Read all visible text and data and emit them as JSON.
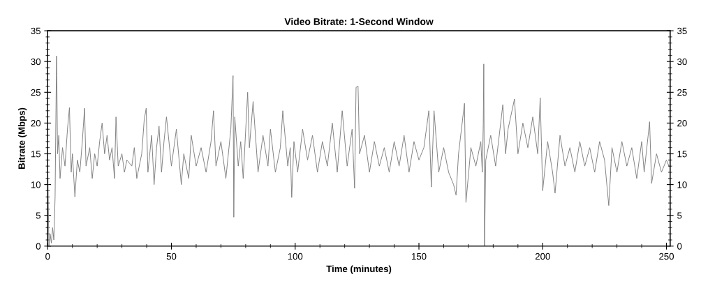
{
  "chart_data": {
    "type": "line",
    "title": "Video Bitrate: 1-Second Window",
    "xlabel": "Time (minutes)",
    "ylabel": "Bitrate (Mbps)",
    "xlim": [
      0,
      251.5
    ],
    "xticks": [
      0,
      50,
      100,
      150,
      200,
      250
    ],
    "ylim": [
      0,
      35
    ],
    "yticks": [
      0,
      5,
      10,
      15,
      20,
      25,
      30,
      35
    ],
    "y2lim": [
      0,
      35
    ],
    "y2ticks": [
      0,
      5,
      10,
      15,
      20,
      25,
      30,
      35
    ],
    "grid": false,
    "legend": false,
    "marker": "none",
    "line_style": "solid",
    "series": [
      {
        "color": "#808080",
        "x": [
          0,
          0.5,
          1,
          1.5,
          2,
          2.5,
          3,
          3.5,
          3.6,
          4,
          4.5,
          5,
          6,
          7,
          8,
          8.8,
          9.5,
          10,
          11,
          12,
          13,
          14,
          14.9,
          15.5,
          17,
          18,
          19,
          20,
          21,
          22,
          23,
          24,
          25,
          26,
          27,
          27.6,
          28.5,
          30,
          31,
          32,
          34,
          35,
          36,
          38,
          39,
          39.8,
          40.5,
          42,
          43,
          44,
          45,
          46,
          47,
          48,
          50,
          51,
          52,
          54,
          55,
          57,
          58,
          60,
          62,
          64,
          66,
          67,
          68,
          70,
          72,
          74,
          74.9,
          75.2,
          75.6,
          77,
          78,
          79,
          80.8,
          81.5,
          83,
          85,
          87,
          89,
          90,
          92,
          94,
          95,
          97,
          98,
          98.6,
          99.5,
          101,
          103,
          105,
          107,
          109,
          111,
          113,
          115,
          117,
          119,
          121,
          123,
          124,
          124.6,
          125.4,
          126,
          128,
          130,
          132,
          134,
          136,
          138,
          140,
          142,
          144,
          146,
          148,
          150,
          152,
          154,
          155,
          156.1,
          158,
          160,
          162,
          164,
          165,
          166,
          168.4,
          169,
          171,
          173,
          175,
          175.6,
          176,
          176.2,
          176.5,
          177,
          179,
          181,
          183.9,
          185,
          186,
          188.6,
          190,
          192,
          194,
          196,
          198,
          199,
          200,
          202,
          204,
          205,
          207,
          209,
          211,
          213,
          215,
          217,
          219,
          221,
          223,
          225,
          226.7,
          228,
          230,
          232,
          234,
          236,
          238,
          240,
          241,
          243.2,
          244,
          246,
          248,
          250,
          251
        ],
        "values": [
          14,
          0,
          2,
          0.5,
          3,
          1,
          8,
          27.7,
          30.9,
          15,
          18,
          11,
          16,
          13,
          19,
          22.5,
          12,
          15,
          8,
          14,
          12,
          17,
          22.4,
          13,
          16,
          11,
          15,
          13,
          17,
          20,
          15,
          18,
          14,
          16,
          11,
          21,
          13,
          15,
          12,
          14,
          13,
          16,
          11,
          15,
          20.5,
          22.4,
          12,
          18,
          10,
          16,
          19.5,
          12,
          17,
          21,
          13,
          16,
          19,
          10,
          15,
          11,
          18,
          13,
          16,
          12,
          17,
          22,
          13,
          17,
          11,
          19,
          27.7,
          4.7,
          21,
          13,
          17,
          11,
          25,
          16,
          23.5,
          12,
          18,
          13,
          19,
          12,
          16,
          22,
          13,
          16,
          7.9,
          17,
          12,
          19,
          14,
          18,
          12,
          17,
          13,
          20,
          12,
          22,
          13,
          19,
          9.4,
          25.8,
          26,
          15,
          18,
          12,
          17,
          13,
          16,
          12,
          17,
          13,
          18,
          12,
          17,
          14,
          16,
          22,
          9.6,
          22,
          12,
          16,
          12,
          10,
          8.3,
          15,
          23.2,
          7.1,
          16,
          13,
          17,
          12,
          20,
          29.6,
          0,
          14,
          18,
          13,
          23,
          15,
          19,
          23.9,
          15,
          20,
          16,
          21,
          15,
          24.1,
          9,
          17,
          12,
          8.6,
          18,
          13,
          16,
          12,
          17,
          13,
          16,
          12,
          17,
          14,
          6.6,
          16,
          12,
          17,
          13,
          16,
          11,
          17,
          12,
          20.2,
          10.2,
          15,
          12,
          14,
          13
        ]
      }
    ]
  }
}
